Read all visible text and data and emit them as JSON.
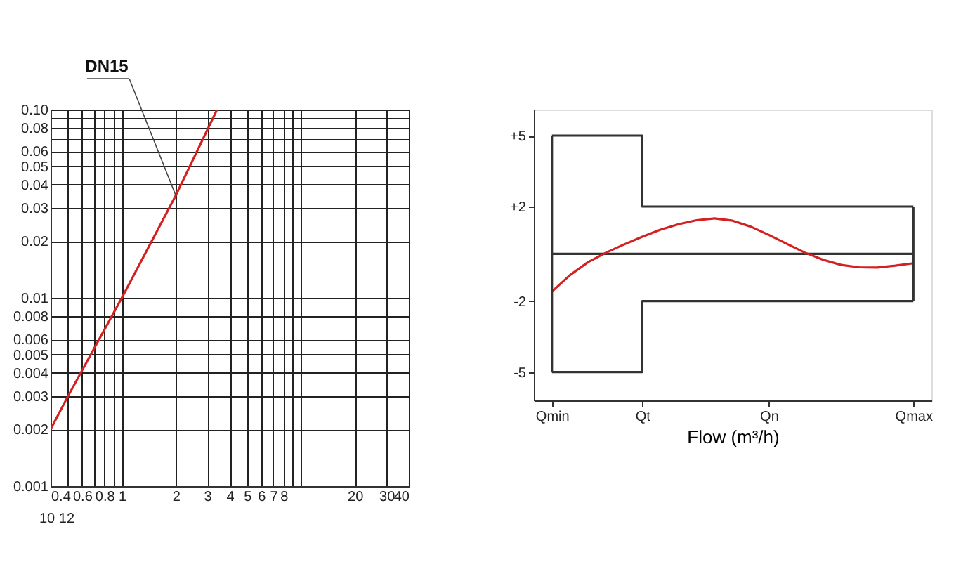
{
  "chart_data": [
    {
      "type": "line",
      "log": "xy",
      "grid": true,
      "xlim": [
        0.4,
        40
      ],
      "ylim": [
        0.001,
        0.1
      ],
      "xticks": [
        0.4,
        {
          "value": 0.5,
          "label": null
        },
        0.6,
        {
          "value": 0.7,
          "label": null
        },
        0.8,
        {
          "value": 0.9,
          "label": null
        },
        1,
        2,
        3,
        4,
        5,
        6,
        7,
        8,
        {
          "value": 9,
          "label": null
        },
        {
          "value": 10,
          "label": null
        },
        20,
        30,
        40
      ],
      "yticks": [
        0.001,
        0.002,
        0.003,
        0.004,
        0.005,
        0.006,
        0.008,
        0.01,
        0.02,
        0.03,
        0.04,
        0.05,
        0.06,
        {
          "value": 0.07,
          "label": null
        },
        0.08,
        {
          "value": 0.09,
          "label": null
        },
        {
          "value": 0.1,
          "label": "0.10"
        }
      ],
      "series": [
        {
          "x": [
            0.4,
            0.5,
            1,
            2,
            3.4
          ],
          "values": [
            0.002,
            0.003,
            0.01,
            0.035,
            0.1
          ],
          "color": "#d42020"
        }
      ],
      "annotations": [
        {
          "text": "DN15",
          "x": 2,
          "y": 0.035
        },
        "10 12"
      ]
    },
    {
      "type": "line",
      "xlabel": "Flow (m³/h)",
      "ylim": [
        -6.2,
        6.1
      ],
      "categories": [
        "Qmin",
        null,
        null,
        null,
        null,
        "Qt",
        null,
        null,
        null,
        null,
        null,
        null,
        "Qn",
        null,
        null,
        null,
        null,
        null,
        null,
        null,
        "Qmax"
      ],
      "yticks": [
        {
          "value": 5,
          "label": "+5"
        },
        {
          "value": 2,
          "label": "+2"
        },
        -2,
        -5
      ],
      "series": [
        {
          "type": "step",
          "color": "#333333",
          "values": [
            5,
            5,
            5,
            5,
            5,
            2,
            2,
            2,
            2,
            2,
            2,
            2,
            2,
            2,
            2,
            2,
            2,
            2,
            2,
            2,
            2
          ]
        },
        {
          "type": "step",
          "color": "#333333",
          "values": [
            -5,
            -5,
            -5,
            -5,
            -5,
            -2,
            -2,
            -2,
            -2,
            -2,
            -2,
            -2,
            -2,
            -2,
            -2,
            -2,
            -2,
            -2,
            -2,
            -2,
            -2
          ]
        },
        {
          "color": "#333333",
          "values": [
            0,
            0,
            0,
            0,
            0,
            0,
            0,
            0,
            0,
            0,
            0,
            0,
            0,
            0,
            0,
            0,
            0,
            0,
            0,
            0,
            0
          ],
          "errors": [
            5,
            null,
            null,
            null,
            null,
            null,
            null,
            null,
            null,
            null,
            null,
            null,
            null,
            null,
            null,
            null,
            null,
            null,
            null,
            null,
            2
          ]
        },
        {
          "color": "#d42020",
          "values": [
            -1.6,
            -0.9,
            -0.35,
            0.05,
            0.4,
            0.72,
            1.02,
            1.25,
            1.42,
            1.5,
            1.4,
            1.15,
            0.8,
            0.42,
            0.05,
            -0.25,
            -0.47,
            -0.57,
            -0.58,
            -0.5,
            -0.4
          ]
        }
      ]
    }
  ]
}
